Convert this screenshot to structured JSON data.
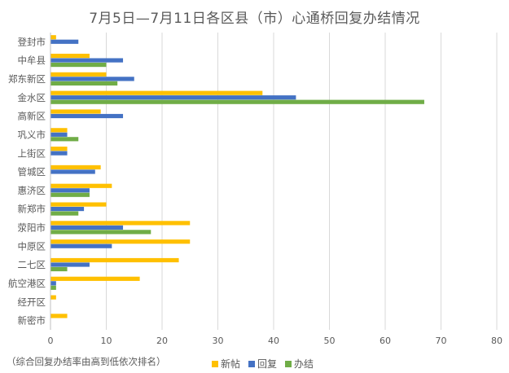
{
  "chart_data": {
    "type": "bar",
    "orientation": "horizontal",
    "title": "7月5日—7月11日各区县（市）心通桥回复办结情况",
    "categories": [
      "登封市",
      "中牟县",
      "郑东新区",
      "金水区",
      "高新区",
      "巩义市",
      "上街区",
      "管城区",
      "惠济区",
      "新郑市",
      "荥阳市",
      "中原区",
      "二七区",
      "航空港区",
      "经开区",
      "新密市"
    ],
    "series": [
      {
        "name": "新帖",
        "color": "#FFC000",
        "values": [
          1,
          7,
          10,
          38,
          9,
          3,
          3,
          9,
          11,
          10,
          25,
          25,
          23,
          16,
          1,
          3
        ]
      },
      {
        "name": "回复",
        "color": "#4472C4",
        "values": [
          5,
          13,
          15,
          44,
          13,
          3,
          3,
          8,
          7,
          6,
          13,
          11,
          7,
          1,
          0,
          0
        ]
      },
      {
        "name": "办结",
        "color": "#70AD47",
        "values": [
          0,
          10,
          12,
          67,
          0,
          5,
          0,
          0,
          7,
          5,
          18,
          0,
          3,
          1,
          0,
          0
        ]
      }
    ],
    "xlim": [
      0,
      80
    ],
    "xticks": [
      0,
      10,
      20,
      30,
      40,
      50,
      60,
      70,
      80
    ],
    "grid": true,
    "legend_position": "bottom",
    "note": "（综合回复办结率由高到低依次排名）"
  }
}
